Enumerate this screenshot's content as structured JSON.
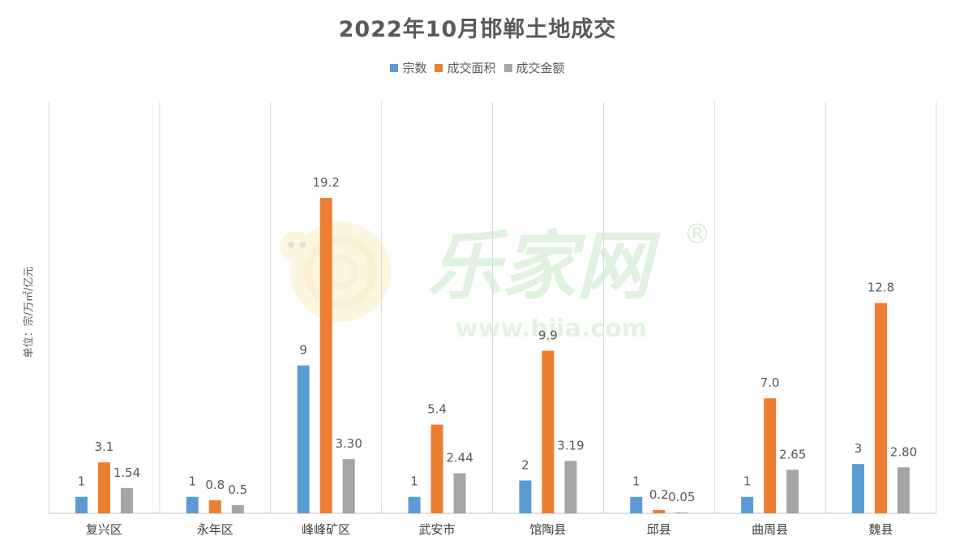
{
  "chart_data": {
    "type": "bar",
    "title": "2022年10月邯郸土地成交",
    "ylabel": "单位：宗/万㎡/亿元",
    "xlabel": "",
    "legend_position": "top",
    "grid": true,
    "categories": [
      "复兴区",
      "永年区",
      "峰峰矿区",
      "武安市",
      "馆陶县",
      "邱县",
      "曲周县",
      "魏县"
    ],
    "series": [
      {
        "name": "宗数",
        "color": "#5B9BD5",
        "values": [
          1,
          1,
          9,
          1,
          2,
          1,
          1,
          3
        ],
        "labels": [
          "1",
          "1",
          "9",
          "1",
          "2",
          "1",
          "1",
          "3"
        ]
      },
      {
        "name": "成交面积",
        "color": "#ED7D31",
        "values": [
          3.1,
          0.8,
          19.2,
          5.4,
          9.9,
          0.2,
          7.0,
          12.8
        ],
        "labels": [
          "3.1",
          "0.8",
          "19.2",
          "5.4",
          "9.9",
          "0.2",
          "7.0",
          "12.8"
        ]
      },
      {
        "name": "成交金额",
        "color": "#A5A5A5",
        "values": [
          1.54,
          0.5,
          3.3,
          2.44,
          3.19,
          0.05,
          2.65,
          2.8
        ],
        "labels": [
          "1.54",
          "0.5",
          "3.30",
          "2.44",
          "3.19",
          "0.05",
          "2.65",
          "2.80"
        ]
      }
    ],
    "ylim": [
      0,
      24
    ]
  },
  "watermark": {
    "brand": "乐家网",
    "url": "www.bjia.com",
    "mark": "®"
  }
}
